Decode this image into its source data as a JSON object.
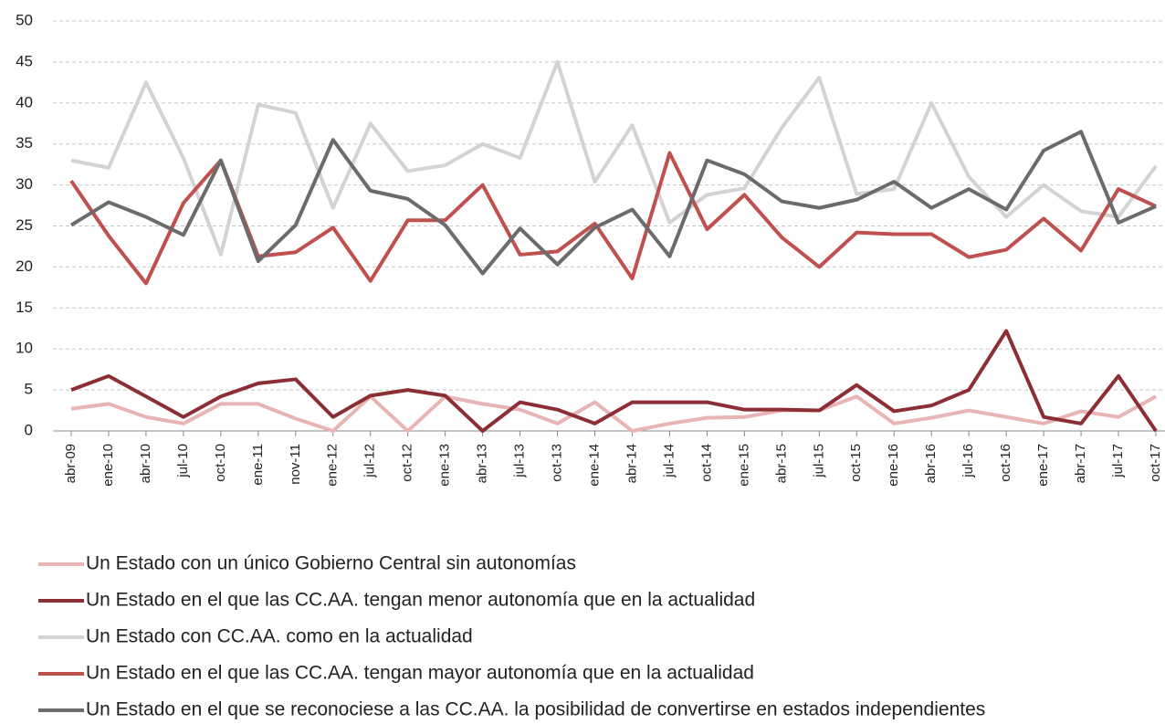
{
  "chart_data": {
    "type": "line",
    "categories": [
      "abr-09",
      "ene-10",
      "abr-10",
      "jul-10",
      "oct-10",
      "ene-11",
      "nov-11",
      "ene-12",
      "jul-12",
      "oct-12",
      "ene-13",
      "abr-13",
      "jul-13",
      "oct-13",
      "ene-14",
      "abr-14",
      "jul-14",
      "oct-14",
      "ene-15",
      "abr-15",
      "jul-15",
      "oct-15",
      "ene-16",
      "abr-16",
      "jul-16",
      "oct-16",
      "ene-17",
      "abr-17",
      "jul-17",
      "oct-17"
    ],
    "series": [
      {
        "name": "Un Estado con un único Gobierno Central sin autonomías",
        "color": "#e8b4b4",
        "values": [
          2.7,
          3.3,
          1.7,
          0.9,
          3.3,
          3.3,
          1.5,
          0,
          4.2,
          0,
          4.2,
          3.3,
          2.6,
          0.9,
          3.5,
          0,
          0.9,
          1.6,
          1.7,
          2.5,
          2.5,
          4.2,
          0.9,
          1.6,
          2.5,
          1.7,
          0.9,
          2.4,
          1.7,
          4.2
        ]
      },
      {
        "name": "Un Estado en el que las CC.AA. tengan menor autonomía que en la actualidad",
        "color": "#8b2f35",
        "values": [
          5,
          6.7,
          4.2,
          1.7,
          4.2,
          5.8,
          6.3,
          1.7,
          4.3,
          5,
          4.3,
          0,
          3.5,
          2.6,
          0.9,
          3.5,
          3.5,
          3.5,
          2.6,
          2.6,
          2.5,
          5.6,
          2.4,
          3.1,
          5,
          12.2,
          1.7,
          0.9,
          6.7,
          0
        ]
      },
      {
        "name": "Un Estado con CC.AA. como en la actualidad",
        "color": "#d3d3d3",
        "values": [
          33,
          32.1,
          42.5,
          33.3,
          21.5,
          39.8,
          38.8,
          27.2,
          37.5,
          31.7,
          32.4,
          35,
          33.3,
          45,
          30.4,
          37.3,
          25.4,
          28.8,
          29.6,
          37,
          43.1,
          28.9,
          29.5,
          40,
          31,
          26.1,
          30,
          26.8,
          26.1,
          32.3
        ]
      },
      {
        "name": "Un Estado en el que las CC.AA. tengan mayor autonomía que en la actualidad",
        "color": "#c0504d",
        "values": [
          30.5,
          23.8,
          18,
          27.8,
          33,
          21.3,
          21.8,
          24.8,
          18.3,
          25.7,
          25.7,
          30,
          21.5,
          21.9,
          25.3,
          18.6,
          33.9,
          24.6,
          28.8,
          23.6,
          20,
          24.2,
          24,
          24,
          21.2,
          22.1,
          25.9,
          22,
          29.5,
          27.4
        ]
      },
      {
        "name": "Un Estado en el que se reconociese a las CC.AA. la posibilidad de convertirse en estados independientes",
        "color": "#6b6b6b",
        "values": [
          25.1,
          27.9,
          26.1,
          23.9,
          33,
          20.7,
          25.1,
          35.5,
          29.3,
          28.3,
          25.1,
          19.2,
          24.7,
          20.3,
          24.8,
          27,
          21.3,
          33,
          31.3,
          28,
          27.2,
          28.2,
          30.4,
          27.2,
          29.5,
          27,
          34.2,
          36.5,
          25.4,
          27.4
        ]
      }
    ],
    "ylim": [
      0,
      50
    ],
    "yticks": [
      0,
      5,
      10,
      15,
      20,
      25,
      30,
      35,
      40,
      45,
      50
    ],
    "grid": true
  }
}
